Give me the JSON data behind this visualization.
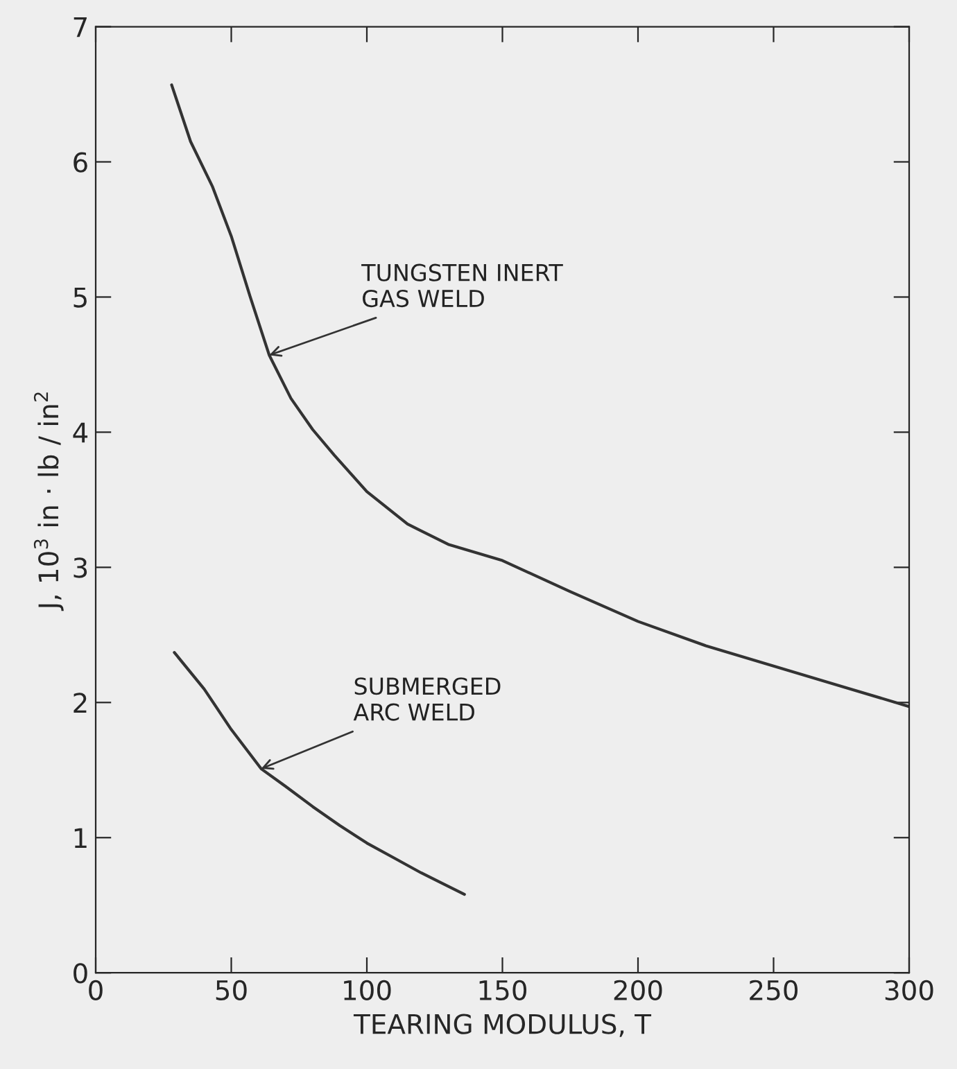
{
  "chart_data": {
    "type": "line",
    "xlabel": "TEARING MODULUS, T",
    "ylabel": "J, 10$^{3}$ in · lb / in$^{2}$",
    "xlim": [
      0,
      300
    ],
    "ylim": [
      0,
      7
    ],
    "xticks": [
      0,
      50,
      100,
      150,
      200,
      250,
      300
    ],
    "yticks": [
      0,
      1,
      2,
      3,
      4,
      5,
      6,
      7
    ],
    "grid": false,
    "legend": false,
    "series": [
      {
        "color": "#333333",
        "x": [
          28,
          35,
          43,
          50,
          57,
          64,
          72,
          80,
          88,
          100,
          115,
          130,
          150,
          175,
          200,
          225,
          250,
          275,
          300
        ],
        "values": [
          6.57,
          6.15,
          5.82,
          5.45,
          5.0,
          4.57,
          4.25,
          4.02,
          3.83,
          3.56,
          3.32,
          3.17,
          3.05,
          2.82,
          2.6,
          2.42,
          2.27,
          2.12,
          1.97
        ]
      },
      {
        "color": "#333333",
        "x": [
          29,
          40,
          50,
          61,
          70,
          80,
          90,
          100,
          110,
          120,
          136
        ],
        "values": [
          2.37,
          2.1,
          1.8,
          1.51,
          1.38,
          1.23,
          1.09,
          0.96,
          0.85,
          0.74,
          0.58
        ]
      }
    ],
    "annotations": [
      {
        "text": "TUNGSTEN INERT\nGAS WELD",
        "x": 64,
        "y": 4.57
      },
      {
        "text": "SUBMERGED\nARC WELD",
        "x": 61,
        "y": 1.51
      }
    ]
  }
}
